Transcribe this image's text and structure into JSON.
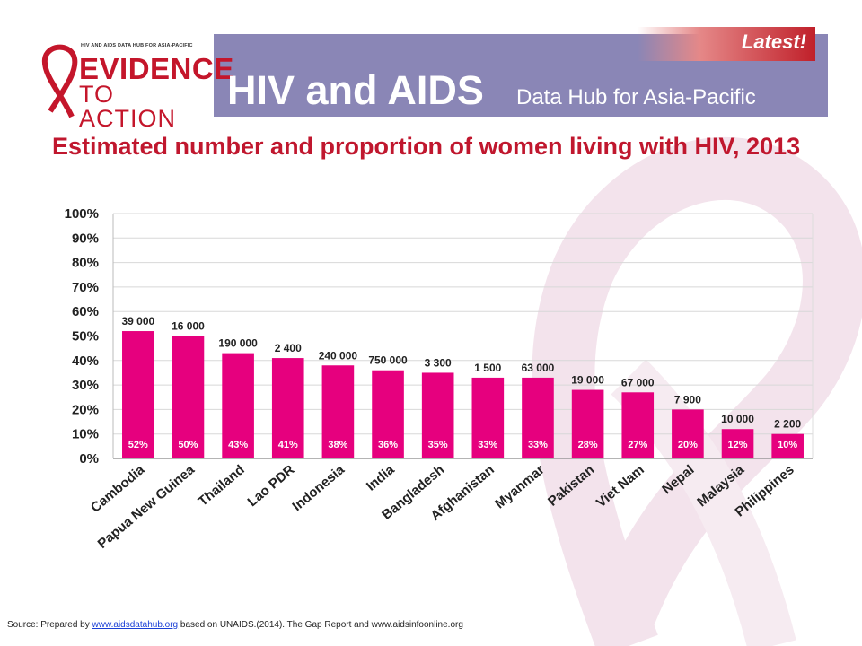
{
  "header": {
    "logo_small": "HIV AND AIDS DATA HUB FOR ASIA-PACIFIC",
    "logo_main": "EVIDENCE",
    "logo_sub": "TO ACTION",
    "title": "HIV and AIDS",
    "subtitle": "Data Hub for Asia-Pacific",
    "latest_label": "Latest!"
  },
  "colors": {
    "bar": "#e6007e",
    "header": "#8a86b6",
    "title": "#c0172e"
  },
  "chart_data": {
    "type": "bar",
    "title": "Estimated number and proportion of women living with HIV, 2013",
    "categories": [
      "Cambodia",
      "Papua New Guinea",
      "Thailand",
      "Lao PDR",
      "Indonesia",
      "India",
      "Bangladesh",
      "Afghanistan",
      "Myanmar",
      "Pakistan",
      "Viet Nam",
      "Nepal",
      "Malaysia",
      "Philippines"
    ],
    "values": [
      52,
      50,
      43,
      41,
      38,
      36,
      35,
      33,
      33,
      28,
      27,
      20,
      12,
      10
    ],
    "value_labels": [
      "52%",
      "50%",
      "43%",
      "41%",
      "38%",
      "36%",
      "35%",
      "33%",
      "33%",
      "28%",
      "27%",
      "20%",
      "12%",
      "10%"
    ],
    "count_labels": [
      "39 000",
      "16 000",
      "190 000",
      "2 400",
      "240 000",
      "750 000",
      "3 300",
      "1 500",
      "63 000",
      "19 000",
      "67 000",
      "7 900",
      "10 000",
      "2 200"
    ],
    "y_ticks": [
      "0%",
      "10%",
      "20%",
      "30%",
      "40%",
      "50%",
      "60%",
      "70%",
      "80%",
      "90%",
      "100%"
    ],
    "ylim": [
      0,
      100
    ],
    "grid": true,
    "legend": "none"
  },
  "source": {
    "prefix": "Source: Prepared by ",
    "link": "www.aidsdatahub.org",
    "suffix": " based on  UNAIDS.(2014). The Gap Report and www.aidsinfoonline.org"
  }
}
